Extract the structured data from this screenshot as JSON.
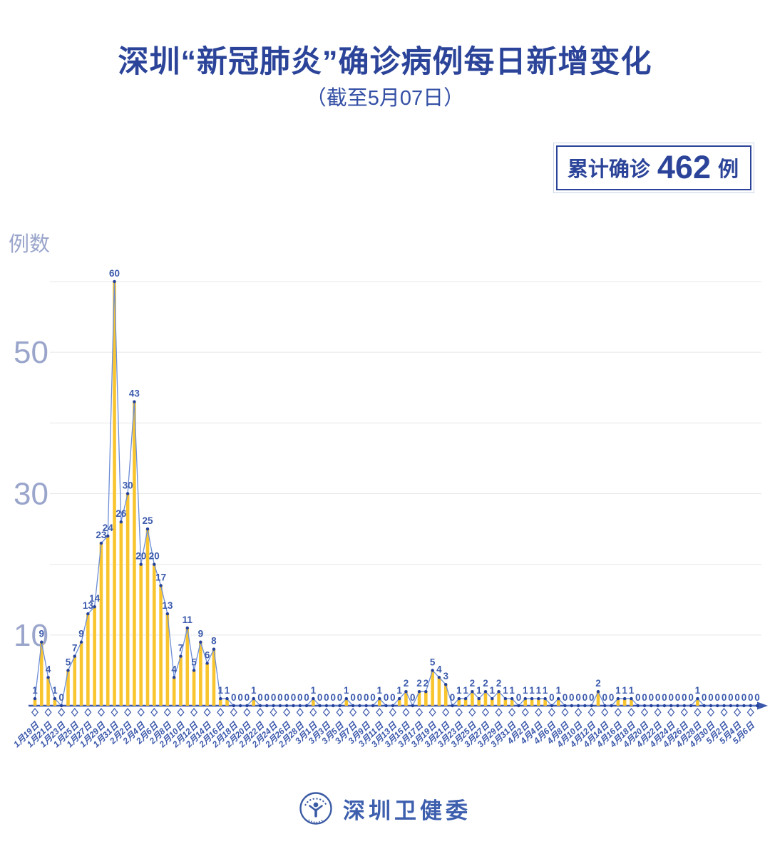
{
  "header": {
    "title": "深圳“新冠肺炎”确诊病例每日新增变化",
    "subtitle": "（截至5月07日）"
  },
  "badge": {
    "prefix": "累计确诊",
    "count": "462",
    "suffix": "例"
  },
  "footer": {
    "org": "深圳卫健委"
  },
  "chart_data": {
    "type": "bar+line",
    "title": "深圳“新冠肺炎”确诊病例每日新增变化（截至5月07日）",
    "ylabel": "例数",
    "ylim": [
      0,
      62
    ],
    "grid_step": 10,
    "grid_max": 60,
    "y_tick_labels": [
      50,
      30,
      10
    ],
    "legend": "none",
    "point_labels_shown": true,
    "x_tick_labels": [
      "1月19日",
      "1月21日",
      "1月23日",
      "1月25日",
      "1月27日",
      "1月29日",
      "1月31日",
      "2月2日",
      "2月4日",
      "2月6日",
      "2月8日",
      "2月10日",
      "2月12日",
      "2月14日",
      "2月16日",
      "2月18日",
      "2月20日",
      "2月22日",
      "2月24日",
      "2月26日",
      "2月28日",
      "3月1日",
      "3月3日",
      "3月5日",
      "3月7日",
      "3月9日",
      "3月11日",
      "3月13日",
      "3月15日",
      "3月17日",
      "3月19日",
      "3月21日",
      "3月23日",
      "3月25日",
      "3月27日",
      "3月29日",
      "3月31日",
      "4月2日",
      "4月4日",
      "4月6日",
      "4月8日",
      "4月10日",
      "4月12日",
      "4月14日",
      "4月16日",
      "4月18日",
      "4月20日",
      "4月22日",
      "4月24日",
      "4月26日",
      "4月28日",
      "4月30日",
      "5月2日",
      "5月4日",
      "5月6日"
    ],
    "values": [
      1,
      9,
      4,
      1,
      0,
      5,
      7,
      9,
      13,
      14,
      23,
      24,
      60,
      26,
      30,
      43,
      20,
      25,
      20,
      17,
      13,
      4,
      7,
      11,
      5,
      9,
      6,
      8,
      1,
      1,
      0,
      0,
      0,
      1,
      0,
      0,
      0,
      0,
      0,
      0,
      0,
      0,
      1,
      0,
      0,
      0,
      0,
      1,
      0,
      0,
      0,
      0,
      1,
      0,
      0,
      1,
      2,
      0,
      2,
      2,
      5,
      4,
      3,
      0,
      1,
      1,
      2,
      1,
      2,
      1,
      2,
      1,
      1,
      0,
      1,
      1,
      1,
      1,
      0,
      1,
      0,
      0,
      0,
      0,
      0,
      2,
      0,
      0,
      1,
      1,
      1,
      0,
      0,
      0,
      0,
      0,
      0,
      0,
      0,
      0,
      1,
      0,
      0,
      0,
      0,
      0,
      0,
      0,
      0,
      0
    ],
    "colors": {
      "bar": "#F8C52F",
      "line": "#6D8ED5",
      "dot": "#24419B",
      "value_label": "#3C5BAD",
      "axis": "#3A57AB",
      "grid": "#E7E7E7",
      "y_tick": "#9AA5CB",
      "title": "#2B4499"
    }
  }
}
